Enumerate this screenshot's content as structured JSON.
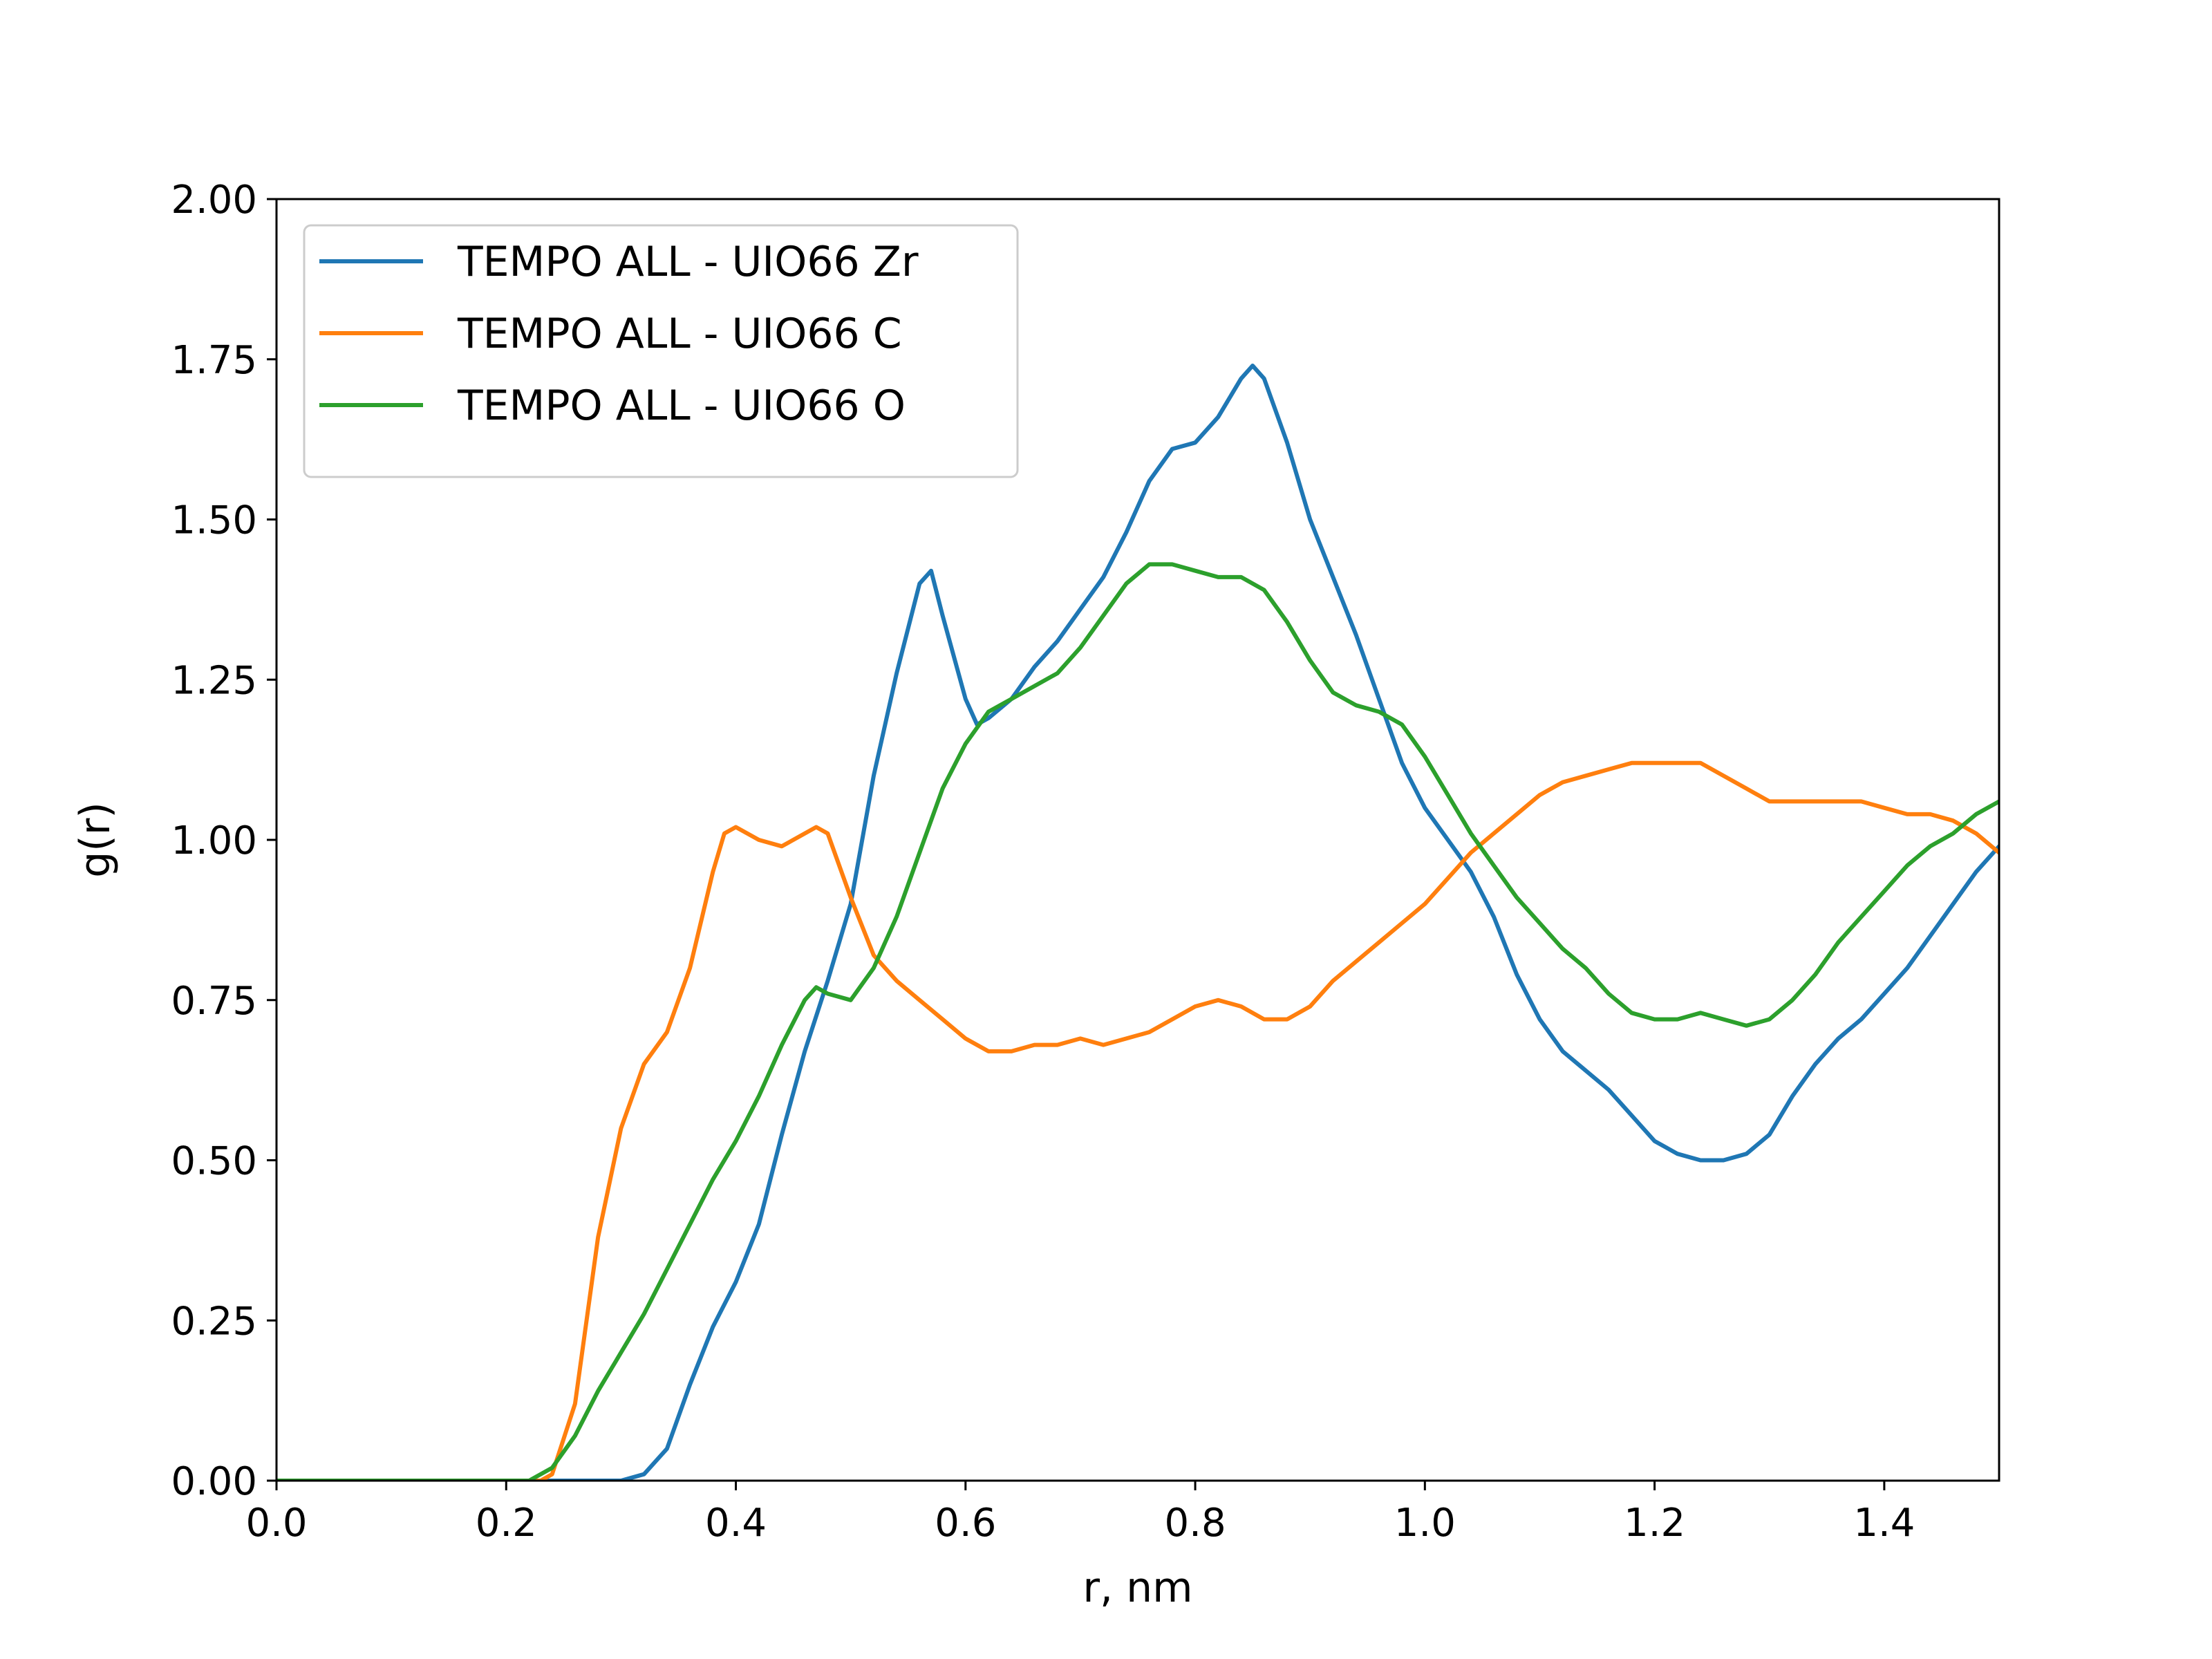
{
  "chart_data": {
    "type": "line",
    "title": "",
    "xlabel": "r, nm",
    "ylabel": "g(r)",
    "xlim": [
      0.0,
      1.5
    ],
    "ylim": [
      0.0,
      2.0
    ],
    "xticks": [
      "0.0",
      "0.2",
      "0.4",
      "0.6",
      "0.8",
      "1.0",
      "1.2",
      "1.4"
    ],
    "xtick_values": [
      0.0,
      0.2,
      0.4,
      0.6,
      0.8,
      1.0,
      1.2,
      1.4
    ],
    "yticks": [
      "0.00",
      "0.25",
      "0.50",
      "0.75",
      "1.00",
      "1.25",
      "1.50",
      "1.75",
      "2.00"
    ],
    "ytick_values": [
      0.0,
      0.25,
      0.5,
      0.75,
      1.0,
      1.25,
      1.5,
      1.75,
      2.0
    ],
    "grid": false,
    "legend_position": "top-left",
    "series": [
      {
        "name": "TEMPO ALL - UIO66 Zr",
        "color": "#1f77b4",
        "x": [
          0.0,
          0.3,
          0.32,
          0.34,
          0.36,
          0.38,
          0.4,
          0.42,
          0.44,
          0.46,
          0.48,
          0.5,
          0.52,
          0.54,
          0.56,
          0.57,
          0.58,
          0.6,
          0.61,
          0.62,
          0.64,
          0.66,
          0.68,
          0.7,
          0.72,
          0.74,
          0.76,
          0.78,
          0.8,
          0.82,
          0.84,
          0.85,
          0.86,
          0.88,
          0.9,
          0.92,
          0.94,
          0.96,
          0.98,
          1.0,
          1.02,
          1.04,
          1.06,
          1.08,
          1.1,
          1.12,
          1.14,
          1.16,
          1.18,
          1.2,
          1.22,
          1.24,
          1.26,
          1.28,
          1.3,
          1.32,
          1.34,
          1.36,
          1.38,
          1.4,
          1.42,
          1.44,
          1.46,
          1.48,
          1.5
        ],
        "y": [
          0.0,
          0.0,
          0.01,
          0.05,
          0.15,
          0.24,
          0.31,
          0.4,
          0.54,
          0.67,
          0.78,
          0.9,
          1.1,
          1.26,
          1.4,
          1.42,
          1.35,
          1.22,
          1.18,
          1.19,
          1.22,
          1.27,
          1.31,
          1.36,
          1.41,
          1.48,
          1.56,
          1.61,
          1.62,
          1.66,
          1.72,
          1.74,
          1.72,
          1.62,
          1.5,
          1.41,
          1.32,
          1.22,
          1.12,
          1.05,
          1.0,
          0.95,
          0.88,
          0.79,
          0.72,
          0.67,
          0.64,
          0.61,
          0.57,
          0.53,
          0.51,
          0.5,
          0.5,
          0.51,
          0.54,
          0.6,
          0.65,
          0.69,
          0.72,
          0.76,
          0.8,
          0.85,
          0.9,
          0.95,
          0.99
        ]
      },
      {
        "name": "TEMPO ALL - UIO66 C",
        "color": "#ff7f0e",
        "x": [
          0.0,
          0.23,
          0.24,
          0.26,
          0.28,
          0.3,
          0.32,
          0.34,
          0.36,
          0.38,
          0.39,
          0.4,
          0.42,
          0.44,
          0.46,
          0.47,
          0.48,
          0.5,
          0.52,
          0.54,
          0.56,
          0.58,
          0.6,
          0.62,
          0.64,
          0.66,
          0.68,
          0.7,
          0.72,
          0.74,
          0.76,
          0.78,
          0.8,
          0.82,
          0.84,
          0.86,
          0.88,
          0.9,
          0.92,
          0.94,
          0.96,
          0.98,
          1.0,
          1.02,
          1.04,
          1.06,
          1.08,
          1.1,
          1.12,
          1.14,
          1.16,
          1.18,
          1.2,
          1.22,
          1.24,
          1.26,
          1.28,
          1.3,
          1.32,
          1.34,
          1.36,
          1.38,
          1.4,
          1.42,
          1.44,
          1.46,
          1.48,
          1.5
        ],
        "y": [
          0.0,
          0.0,
          0.01,
          0.12,
          0.38,
          0.55,
          0.65,
          0.7,
          0.8,
          0.95,
          1.01,
          1.02,
          1.0,
          0.99,
          1.01,
          1.02,
          1.01,
          0.91,
          0.82,
          0.78,
          0.75,
          0.72,
          0.69,
          0.67,
          0.67,
          0.68,
          0.68,
          0.69,
          0.68,
          0.69,
          0.7,
          0.72,
          0.74,
          0.75,
          0.74,
          0.72,
          0.72,
          0.74,
          0.78,
          0.81,
          0.84,
          0.87,
          0.9,
          0.94,
          0.98,
          1.01,
          1.04,
          1.07,
          1.09,
          1.1,
          1.11,
          1.12,
          1.12,
          1.12,
          1.12,
          1.1,
          1.08,
          1.06,
          1.06,
          1.06,
          1.06,
          1.06,
          1.05,
          1.04,
          1.04,
          1.03,
          1.01,
          0.98
        ]
      },
      {
        "name": "TEMPO ALL - UIO66 O",
        "color": "#2ca02c",
        "x": [
          0.0,
          0.22,
          0.24,
          0.26,
          0.28,
          0.3,
          0.32,
          0.34,
          0.36,
          0.38,
          0.4,
          0.42,
          0.44,
          0.46,
          0.47,
          0.48,
          0.5,
          0.52,
          0.54,
          0.56,
          0.58,
          0.6,
          0.62,
          0.64,
          0.66,
          0.68,
          0.7,
          0.72,
          0.74,
          0.76,
          0.78,
          0.8,
          0.82,
          0.84,
          0.86,
          0.88,
          0.9,
          0.92,
          0.94,
          0.96,
          0.98,
          1.0,
          1.02,
          1.04,
          1.06,
          1.08,
          1.1,
          1.12,
          1.14,
          1.16,
          1.18,
          1.2,
          1.22,
          1.24,
          1.26,
          1.28,
          1.3,
          1.32,
          1.34,
          1.36,
          1.38,
          1.4,
          1.42,
          1.44,
          1.46,
          1.48,
          1.5
        ],
        "y": [
          0.0,
          0.0,
          0.02,
          0.07,
          0.14,
          0.2,
          0.26,
          0.33,
          0.4,
          0.47,
          0.53,
          0.6,
          0.68,
          0.75,
          0.77,
          0.76,
          0.75,
          0.8,
          0.88,
          0.98,
          1.08,
          1.15,
          1.2,
          1.22,
          1.24,
          1.26,
          1.3,
          1.35,
          1.4,
          1.43,
          1.43,
          1.42,
          1.41,
          1.41,
          1.39,
          1.34,
          1.28,
          1.23,
          1.21,
          1.2,
          1.18,
          1.13,
          1.07,
          1.01,
          0.96,
          0.91,
          0.87,
          0.83,
          0.8,
          0.76,
          0.73,
          0.72,
          0.72,
          0.73,
          0.72,
          0.71,
          0.72,
          0.75,
          0.79,
          0.84,
          0.88,
          0.92,
          0.96,
          0.99,
          1.01,
          1.04,
          1.06
        ]
      }
    ]
  }
}
